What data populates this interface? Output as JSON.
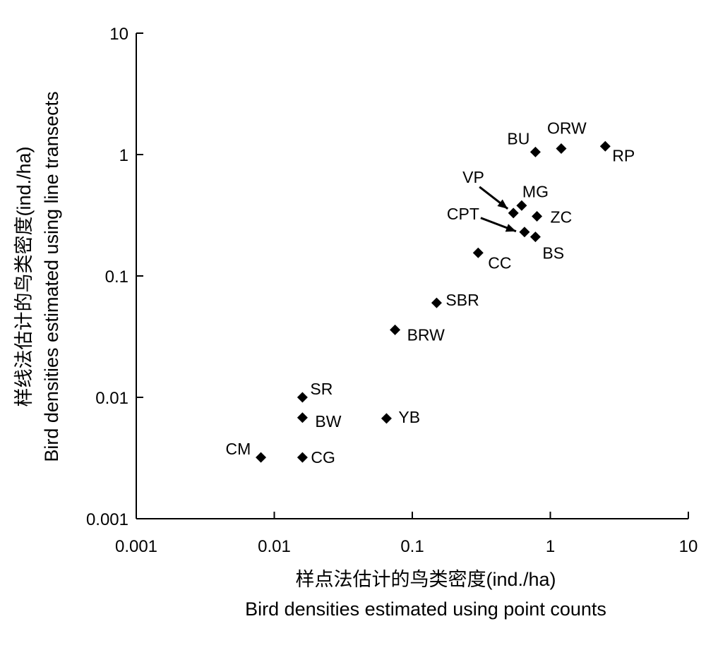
{
  "chart_data": {
    "type": "scatter",
    "x_scale": "log",
    "y_scale": "log",
    "xlim": [
      0.001,
      10
    ],
    "ylim": [
      0.001,
      10
    ],
    "grid": false,
    "x_ticks": [
      "0.001",
      "0.01",
      "0.1",
      "1",
      "10"
    ],
    "y_ticks": [
      "0.001",
      "0.01",
      "0.1",
      "1",
      "10"
    ],
    "xlabel_zh": "样点法估计的鸟类密度(ind./ha)",
    "xlabel_en": "Bird densities estimated using point counts",
    "ylabel_zh": "样线法估计的鸟类密度(ind./ha)",
    "ylabel_en": "Bird densities estimated using line transects",
    "points": [
      {
        "label": "BU",
        "x": 0.78,
        "y": 1.05
      },
      {
        "label": "ORW",
        "x": 1.2,
        "y": 1.12
      },
      {
        "label": "RP",
        "x": 2.5,
        "y": 1.17
      },
      {
        "label": "VP",
        "x": 0.54,
        "y": 0.33
      },
      {
        "label": "MG",
        "x": 0.62,
        "y": 0.38
      },
      {
        "label": "ZC",
        "x": 0.8,
        "y": 0.31
      },
      {
        "label": "CPT",
        "x": 0.65,
        "y": 0.23
      },
      {
        "label": "BS",
        "x": 0.78,
        "y": 0.21
      },
      {
        "label": "CC",
        "x": 0.3,
        "y": 0.155
      },
      {
        "label": "SBR",
        "x": 0.15,
        "y": 0.06
      },
      {
        "label": "BRW",
        "x": 0.075,
        "y": 0.036
      },
      {
        "label": "SR",
        "x": 0.016,
        "y": 0.01
      },
      {
        "label": "BW",
        "x": 0.016,
        "y": 0.0068
      },
      {
        "label": "YB",
        "x": 0.065,
        "y": 0.0067
      },
      {
        "label": "CM",
        "x": 0.008,
        "y": 0.0032
      },
      {
        "label": "CG",
        "x": 0.016,
        "y": 0.0032
      }
    ]
  }
}
